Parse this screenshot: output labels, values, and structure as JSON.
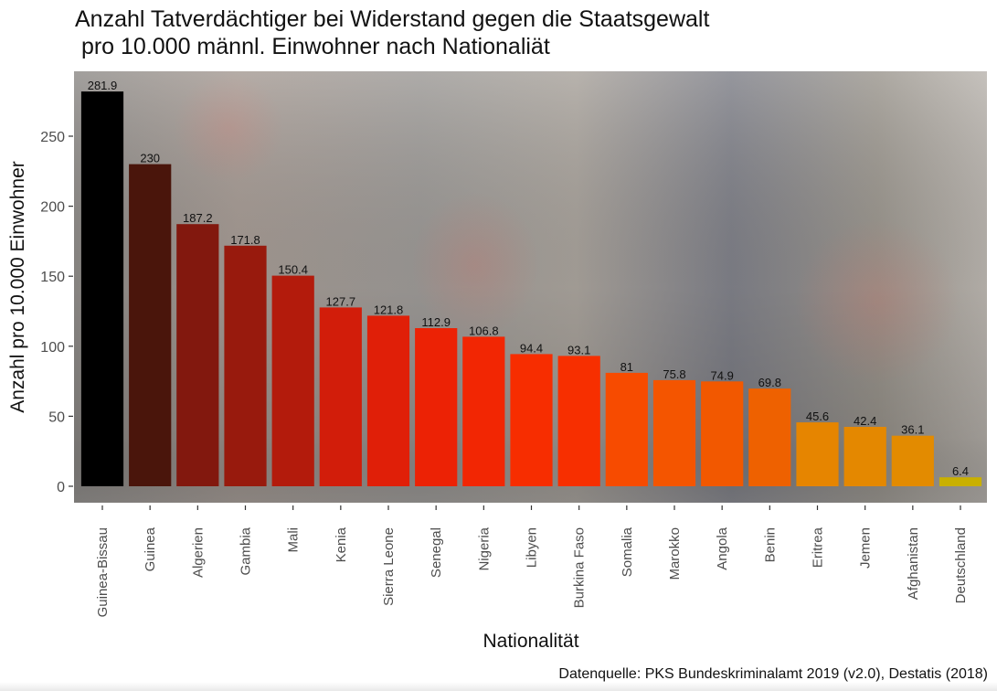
{
  "chart_data": {
    "type": "bar",
    "title": "Anzahl Tatverdächtiger bei Widerstand gegen die Staatsgewalt\n pro 10.000 männl. Einwohner nach Nationaliät",
    "xlabel": "Nationalität",
    "ylabel": "Anzahl pro 10.000 Einwohner",
    "caption": "Datenquelle: PKS Bundeskriminalamt 2019 (v2.0), Destatis (2018)",
    "categories": [
      "Guinea-Bissau",
      "Guinea",
      "Algerien",
      "Gambia",
      "Mali",
      "Kenia",
      "Sierra Leone",
      "Senegal",
      "Nigeria",
      "Libyen",
      "Burkina Faso",
      "Somalia",
      "Marokko",
      "Angola",
      "Benin",
      "Eritrea",
      "Jemen",
      "Afghanistan",
      "Deutschland"
    ],
    "values": [
      281.9,
      230,
      187.2,
      171.8,
      150.4,
      127.7,
      121.8,
      112.9,
      106.8,
      94.4,
      93.1,
      81,
      75.8,
      74.9,
      69.8,
      45.6,
      42.4,
      36.1,
      6.4
    ],
    "value_labels": [
      "281.9",
      "230",
      "187.2",
      "171.8",
      "150.4",
      "127.7",
      "121.8",
      "112.9",
      "106.8",
      "94.4",
      "93.1",
      "81",
      "75.8",
      "74.9",
      "69.8",
      "45.6",
      "42.4",
      "36.1",
      "6.4"
    ],
    "bar_colors": [
      "#000000",
      "#4a150b",
      "#82180e",
      "#981a0d",
      "#b31b0c",
      "#d21d0a",
      "#e01f08",
      "#ec2205",
      "#f22603",
      "#f72d00",
      "#f72f00",
      "#f74b00",
      "#f45500",
      "#f25800",
      "#ee6100",
      "#e68500",
      "#e48800",
      "#e38b00",
      "#c9b000"
    ],
    "yticks": [
      0,
      50,
      100,
      150,
      200,
      250
    ],
    "ylim": [
      -11,
      298
    ],
    "grid": false,
    "legend": "none",
    "background": "muted photograph of a crowd of protesters"
  }
}
